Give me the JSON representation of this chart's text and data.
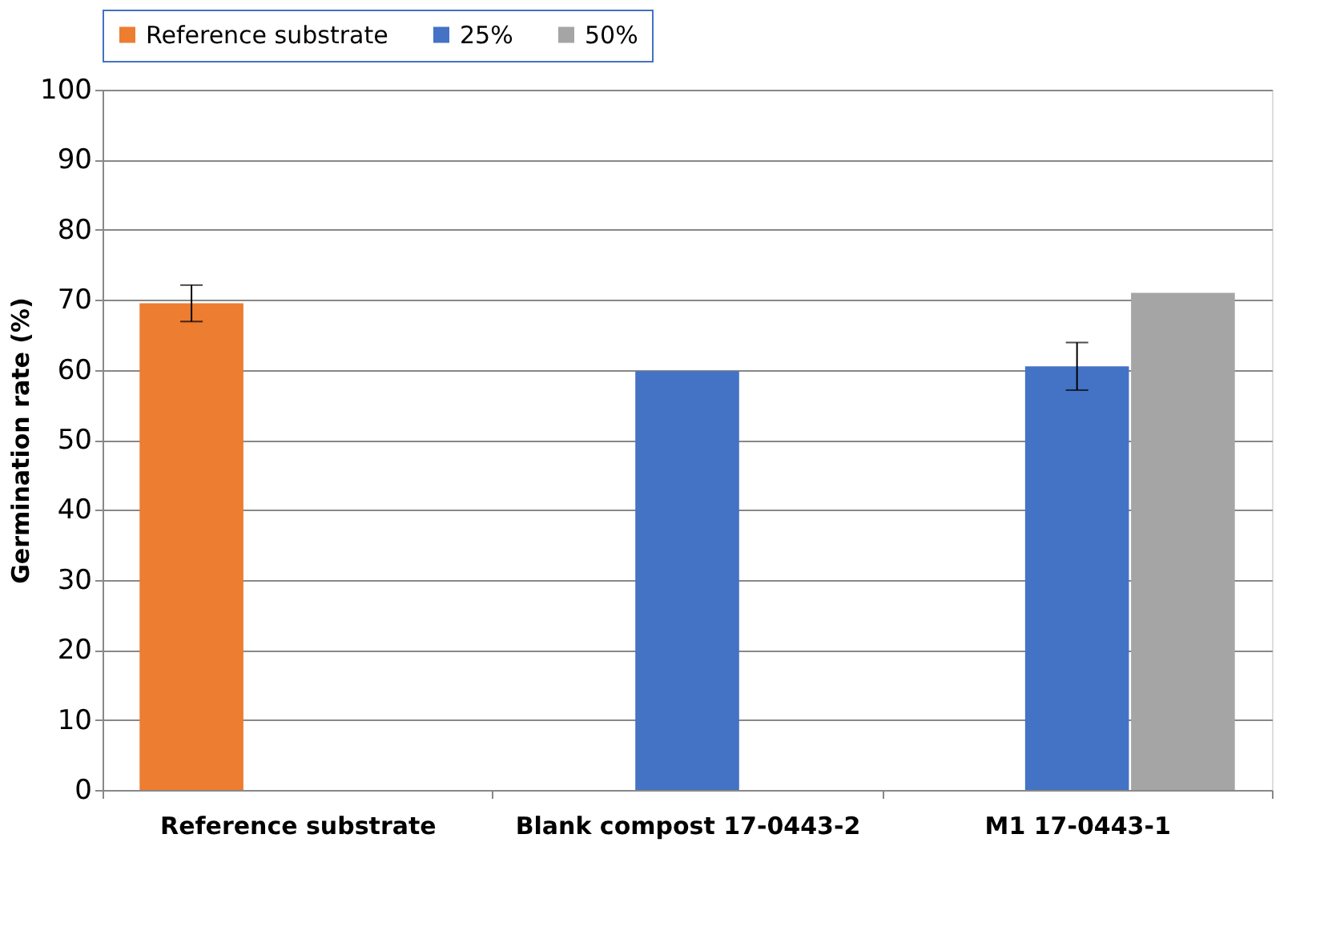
{
  "chart_data": {
    "type": "bar",
    "ylabel": "Germination rate (%)",
    "categories": [
      "Reference substrate",
      "Blank compost 17-0443-2",
      "M1  17-0443-1"
    ],
    "series": [
      {
        "name": "Reference substrate",
        "color": "#ed7d31",
        "values": [
          69.5,
          null,
          null
        ],
        "errors": [
          2.6,
          null,
          null
        ]
      },
      {
        "name": "25%",
        "color": "#4472c4",
        "values": [
          null,
          59.8,
          60.5
        ],
        "errors": [
          null,
          null,
          3.4
        ]
      },
      {
        "name": "50%",
        "color": "#a5a5a5",
        "values": [
          null,
          null,
          71.0
        ],
        "errors": [
          null,
          null,
          null
        ]
      }
    ],
    "ylim": [
      0,
      100
    ],
    "yticks": [
      0,
      10,
      20,
      30,
      40,
      50,
      60,
      70,
      80,
      90,
      100
    ],
    "grid": "y",
    "legend": "top"
  }
}
